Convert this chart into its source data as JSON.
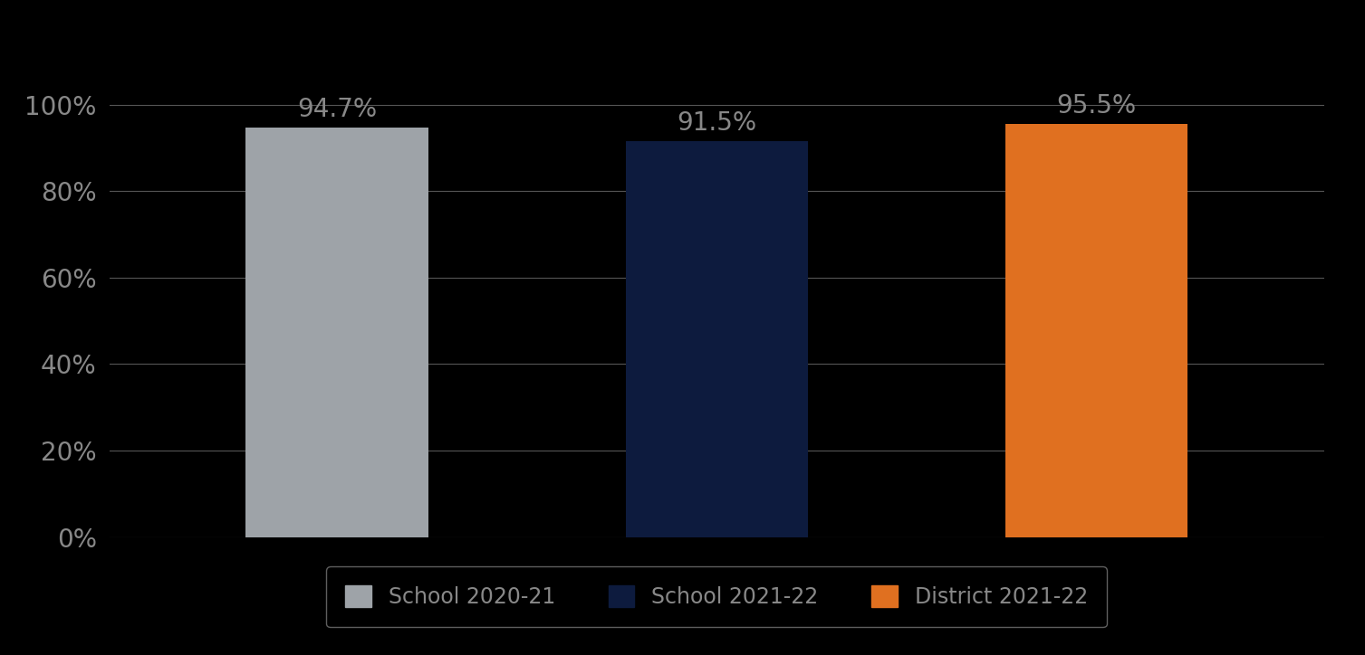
{
  "categories": [
    "School 2020-21",
    "School 2021-22",
    "District 2021-22"
  ],
  "values": [
    94.7,
    91.5,
    95.5
  ],
  "bar_colors": [
    "#9EA3A8",
    "#0D1B3E",
    "#E07020"
  ],
  "background_color": "#000000",
  "gridline_color": "#555555",
  "text_color": "#888888",
  "label_color": "#888888",
  "ylim": [
    0,
    106
  ],
  "yticks": [
    0,
    20,
    40,
    60,
    80,
    100
  ],
  "ytick_labels": [
    "0%",
    "20%",
    "40%",
    "60%",
    "80%",
    "100%"
  ],
  "bar_label_fontsize": 20,
  "tick_fontsize": 20,
  "legend_fontsize": 17,
  "bar_width": 0.48,
  "x_positions": [
    1,
    2,
    3
  ],
  "xlim": [
    0.4,
    3.6
  ]
}
